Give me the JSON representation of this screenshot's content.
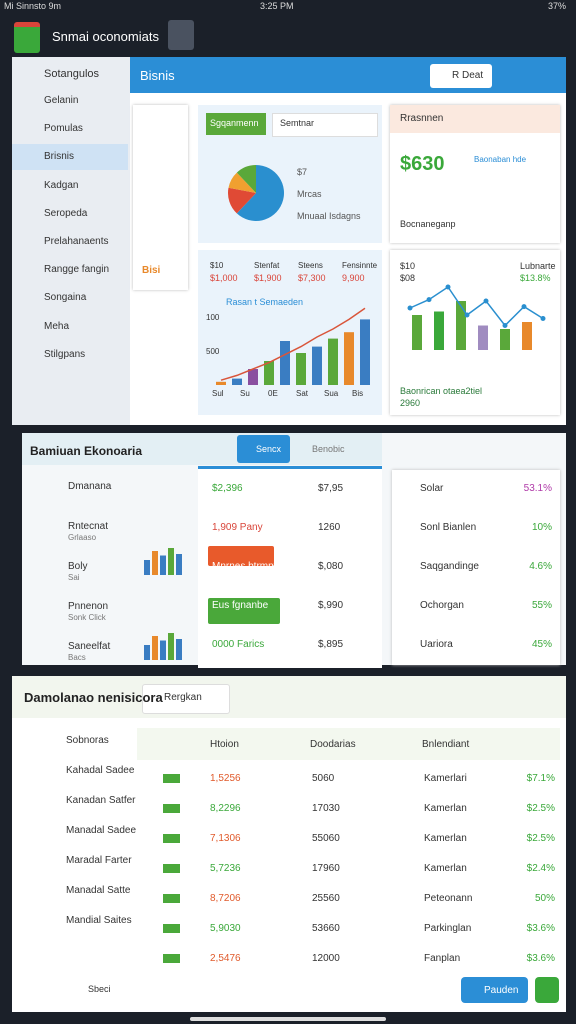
{
  "status": {
    "left": "Mi Sinnsto 9m",
    "time": "3:25 PM",
    "battery": "37%"
  },
  "header": {
    "title": "Snmai oconomiats"
  },
  "sidebar": {
    "title": "Sotangulos",
    "active": 2,
    "items": [
      "Gelanin",
      "Pomulas",
      "Brisnis",
      "Kadgan",
      "Seropeda",
      "Prelahanaents",
      "Rangge fangin",
      "Songaina",
      "Meha",
      "Stilgpans"
    ]
  },
  "overview": {
    "title": "Bisnis",
    "dropdown": "R Deat",
    "side_tag": "Bisi",
    "segment_card": {
      "tab": "Sgqanmenn",
      "input": "Semtnar",
      "legend": [
        "$7",
        "Mrcas",
        "Mnuaal Isdagns"
      ],
      "pie": [
        {
          "value": 62,
          "color": "#2a8fcf"
        },
        {
          "value": 16,
          "color": "#e04a35"
        },
        {
          "value": 10,
          "color": "#f0a030"
        },
        {
          "value": 12,
          "color": "#5aa83a"
        }
      ]
    },
    "growth_card": {
      "title": "Rrasnnen",
      "big": "$630",
      "note": "Baonaban hde",
      "footer": "Bocnaneganp"
    },
    "revenue_card": {
      "stats": [
        [
          "$10",
          "$1,000"
        ],
        [
          "Stenfat",
          "$1,900"
        ],
        [
          "Steens",
          "$7,300"
        ],
        [
          "Fensinnte",
          "9,900"
        ]
      ],
      "chart_title": "Rasan t Semaeden",
      "axis_labels": [
        "100",
        "500"
      ],
      "x_labels": [
        "Sul",
        "Su",
        "0E",
        "Sat",
        "Sua",
        "Bis"
      ],
      "ylim": [
        0,
        100
      ],
      "bars": [
        {
          "value": 4,
          "color": "#e8892b"
        },
        {
          "value": 8,
          "color": "#3a7dc2"
        },
        {
          "value": 20,
          "color": "#8a4fa0"
        },
        {
          "value": 30,
          "color": "#5aa83a"
        },
        {
          "value": 55,
          "color": "#3a7dc2"
        },
        {
          "value": 40,
          "color": "#5aa83a"
        },
        {
          "value": 48,
          "color": "#3a7dc2"
        },
        {
          "value": 58,
          "color": "#5aa83a"
        },
        {
          "value": 66,
          "color": "#e8892b"
        },
        {
          "value": 82,
          "color": "#3a7dc2"
        }
      ],
      "line": [
        6,
        12,
        20,
        28,
        38,
        48,
        60,
        70,
        82,
        96
      ],
      "line_color": "#d9553a"
    },
    "trend_card": {
      "stats": [
        "$10",
        "$08",
        "Lubnarte",
        "$13.8%"
      ],
      "ylim": [
        0,
        100
      ],
      "bars": [
        {
          "value": 50,
          "color": "#5aa83a"
        },
        {
          "value": 55,
          "color": "#3aa83a"
        },
        {
          "value": 70,
          "color": "#5aa83a"
        },
        {
          "value": 35,
          "color": "#a08cc0"
        },
        {
          "value": 30,
          "color": "#5aa83a"
        },
        {
          "value": 40,
          "color": "#e8892b"
        }
      ],
      "line": [
        60,
        72,
        90,
        50,
        70,
        35,
        62,
        45
      ],
      "line_color": "#2a8fcf",
      "footer": "Baonrican otaea2tiel",
      "footer_value": "2960"
    }
  },
  "economy": {
    "title": "Bamiuan Ekonoaria",
    "tabs": [
      "Sencx",
      "Benobic"
    ],
    "list": [
      [
        "Dmanana",
        ""
      ],
      [
        "Rntecnat",
        "Grlaaso"
      ],
      [
        "Boly",
        "Sai"
      ],
      [
        "Pnnenon",
        "Sonk Click"
      ],
      [
        "Saneelfat",
        "Bacs"
      ]
    ],
    "mini_bars": [
      {
        "value": 50,
        "color": "#3a7dc2"
      },
      {
        "value": 80,
        "color": "#e8892b"
      },
      {
        "value": 65,
        "color": "#3a7dc2"
      },
      {
        "value": 90,
        "color": "#5aa83a"
      },
      {
        "value": 70,
        "color": "#3a7dc2"
      }
    ],
    "rows": [
      [
        "$2,396",
        "$7,95"
      ],
      [
        "1,909 Pany",
        "1260"
      ],
      [
        "Mnrnes btrmnts",
        "$,080"
      ],
      [
        "Eus fgnanbe",
        "$,990"
      ],
      [
        "0000 Farics",
        "$,895"
      ]
    ],
    "shares": [
      [
        "Solar",
        "53.1%"
      ],
      [
        "Sonl Bianlen",
        "10%"
      ],
      [
        "Saqgandinge",
        "4.6%"
      ],
      [
        "Ochorgan",
        "55%"
      ],
      [
        "Uariora",
        "45%"
      ]
    ]
  },
  "transactions": {
    "title": "Damolanao nenisicora",
    "filter": "Rergkan",
    "list": [
      "Sobnoras",
      "Kahadal Sadee",
      "Kanadan Satfer",
      "Manadal Sadee",
      "Maradal Farter",
      "Manadal Satte",
      "Mandial Saites"
    ],
    "headers": [
      "Htoion",
      "Doodarias",
      "Bnlendiant"
    ],
    "rows": [
      [
        "1,5256",
        "5060",
        "Kamerlari",
        "$7.1%"
      ],
      [
        "8,2296",
        "17030",
        "Kamerlan",
        "$2.5%"
      ],
      [
        "7,1306",
        "55060",
        "Kamerlan",
        "$2.5%"
      ],
      [
        "5,7236",
        "17960",
        "Kamerlan",
        "$2.4%"
      ],
      [
        "8,7206",
        "25560",
        "Peteonann",
        "50%"
      ],
      [
        "5,9030",
        "53660",
        "Parkinglan",
        "$3.6%"
      ],
      [
        "2,5476",
        "12000",
        "Fanplan",
        "$3.6%"
      ]
    ],
    "footer_left": "Sbeci",
    "button": "Pauden"
  }
}
